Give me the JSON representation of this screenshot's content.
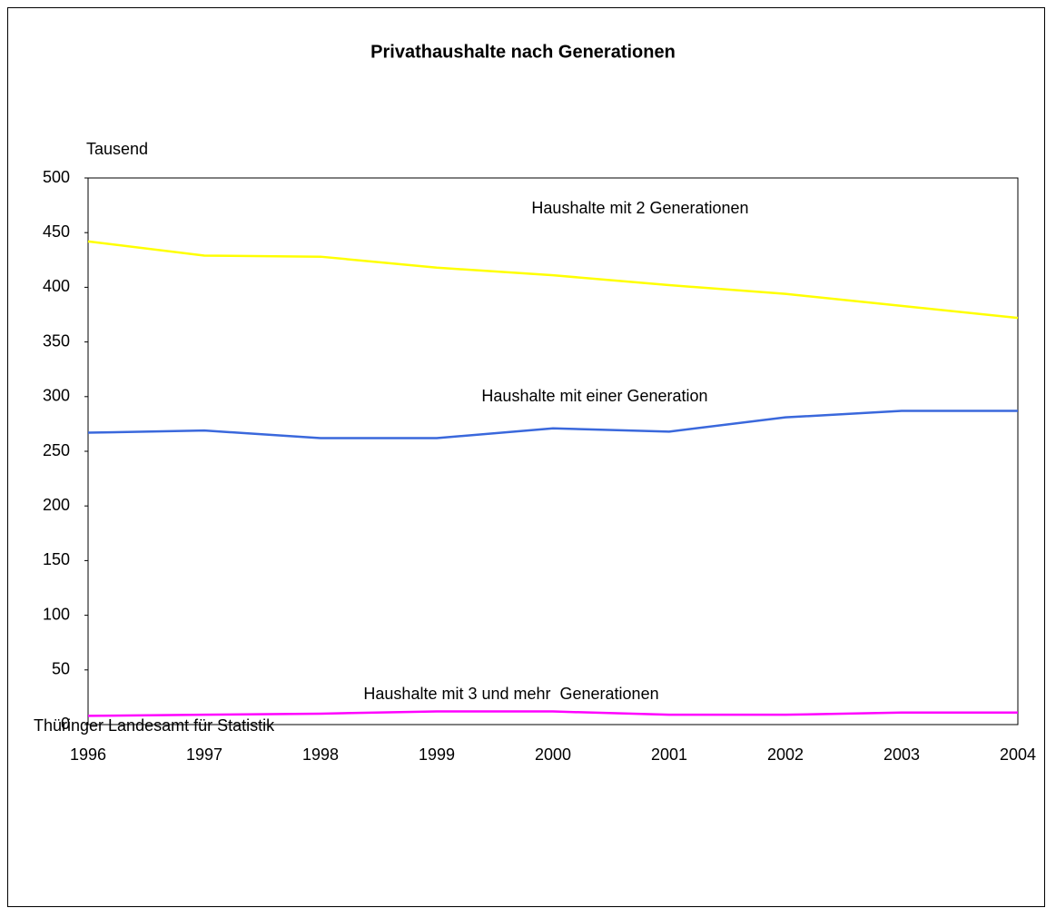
{
  "chart_data": {
    "type": "line",
    "title": "Privathaushalte nach Generationen",
    "y_label": "Tausend",
    "source": "Thüringer Landesamt für Statistik",
    "categories": [
      "1996",
      "1997",
      "1998",
      "1999",
      "2000",
      "2001",
      "2002",
      "2003",
      "2004"
    ],
    "series": [
      {
        "name": "Haushalte mit 2 Generationen",
        "color": "#ffff00",
        "values": [
          442,
          429,
          428,
          418,
          411,
          402,
          394,
          383,
          372
        ]
      },
      {
        "name": "Haushalte mit einer Generation",
        "color": "#3a68dc",
        "values": [
          267,
          269,
          262,
          262,
          271,
          268,
          281,
          287,
          287
        ]
      },
      {
        "name": "Haushalte mit 3 und mehr  Generationen",
        "color": "#ff00ff",
        "values": [
          8,
          9,
          10,
          12,
          12,
          9,
          9,
          11,
          11
        ]
      }
    ],
    "ylim": [
      0,
      500
    ],
    "yticks": [
      0,
      50,
      100,
      150,
      200,
      250,
      300,
      350,
      400,
      450,
      500
    ]
  }
}
